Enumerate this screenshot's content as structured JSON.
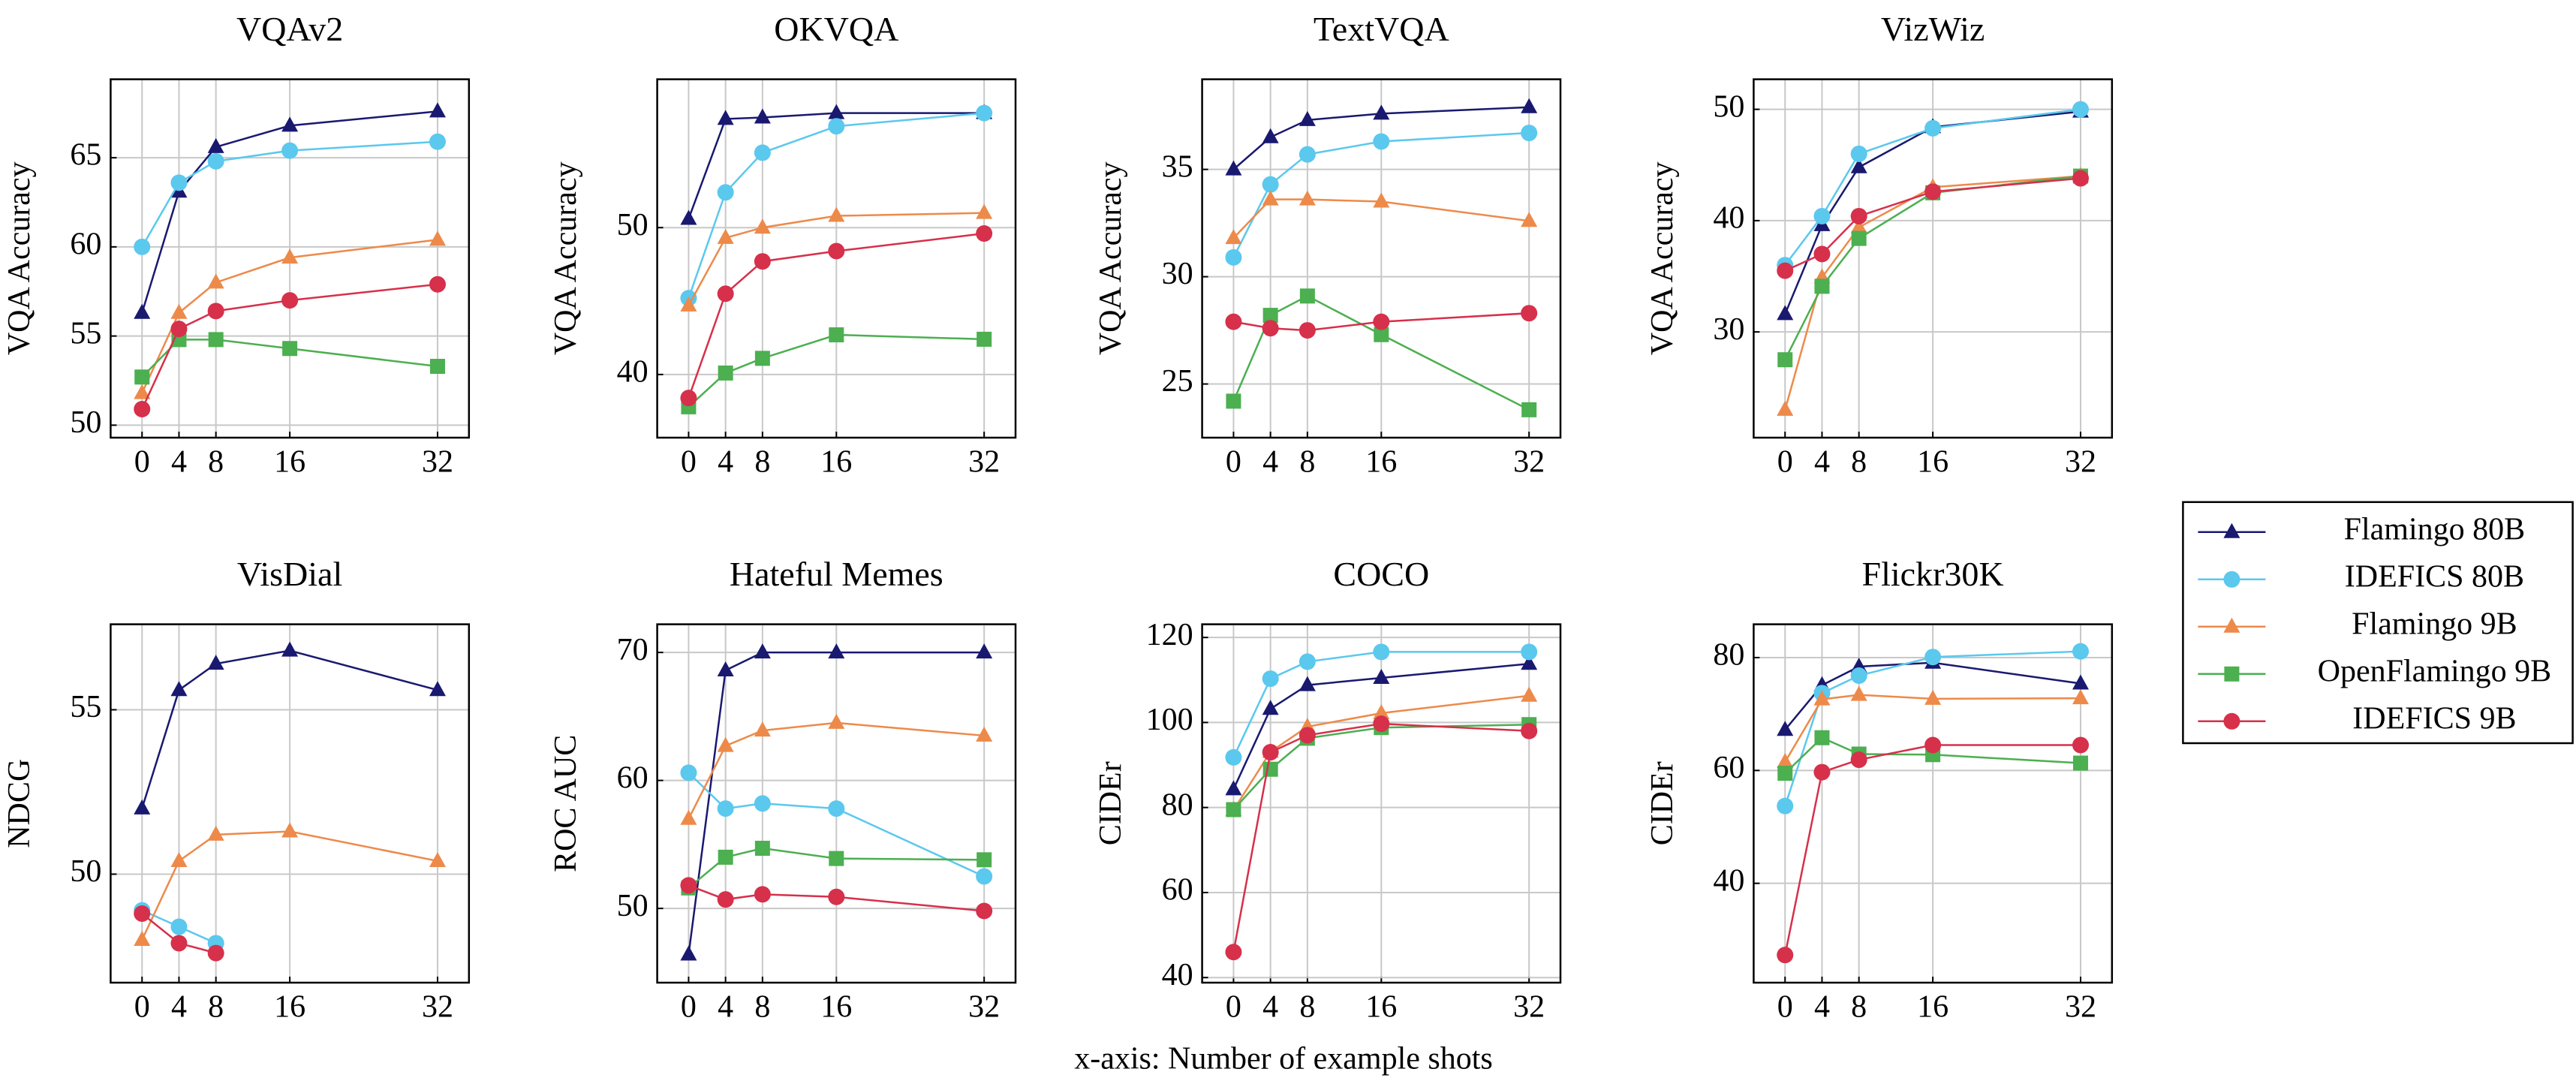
{
  "chart_data": [
    {
      "type": "line",
      "title": "VQAv2",
      "ylabel": "VQA Accuracy",
      "x": [
        0,
        4,
        8,
        16,
        32
      ],
      "xlim": [
        -3.4,
        35.4
      ],
      "xticks": [
        0,
        4,
        8,
        16,
        32
      ],
      "ylim": [
        49.3,
        69.4
      ],
      "yticks": [
        50,
        55,
        60,
        65
      ],
      "grid": true,
      "series": [
        {
          "name": "Flamingo 80B",
          "color": "#191970",
          "marker": "triangle",
          "values": [
            56.3,
            63.1,
            65.6,
            66.8,
            67.6
          ]
        },
        {
          "name": "IDEFICS 80B",
          "color": "#5bc8ee",
          "marker": "circle",
          "values": [
            60.0,
            63.6,
            64.8,
            65.4,
            65.9
          ]
        },
        {
          "name": "Flamingo 9B",
          "color": "#ed8a4a",
          "marker": "triangle",
          "values": [
            51.8,
            56.3,
            58.0,
            59.4,
            60.4
          ]
        },
        {
          "name": "OpenFlamingo 9B",
          "color": "#4caf50",
          "marker": "square",
          "values": [
            52.7,
            54.8,
            54.8,
            54.3,
            53.3
          ]
        },
        {
          "name": "IDEFICS 9B",
          "color": "#d6304b",
          "marker": "circle",
          "values": [
            50.9,
            55.4,
            56.4,
            57.0,
            57.9
          ]
        }
      ]
    },
    {
      "type": "line",
      "title": "OKVQA",
      "ylabel": "VQA Accuracy",
      "x": [
        0,
        4,
        8,
        16,
        32
      ],
      "xlim": [
        -3.4,
        35.4
      ],
      "xticks": [
        0,
        4,
        8,
        16,
        32
      ],
      "ylim": [
        35.7,
        60.1
      ],
      "yticks": [
        40,
        50
      ],
      "grid": true,
      "series": [
        {
          "name": "Flamingo 80B",
          "color": "#191970",
          "marker": "triangle",
          "values": [
            50.6,
            57.4,
            57.5,
            57.8,
            57.8
          ]
        },
        {
          "name": "IDEFICS 80B",
          "color": "#5bc8ee",
          "marker": "circle",
          "values": [
            45.2,
            52.4,
            55.1,
            56.9,
            57.8
          ]
        },
        {
          "name": "Flamingo 9B",
          "color": "#ed8a4a",
          "marker": "triangle",
          "values": [
            44.7,
            49.3,
            50.0,
            50.8,
            51.0
          ]
        },
        {
          "name": "OpenFlamingo 9B",
          "color": "#4caf50",
          "marker": "square",
          "values": [
            37.8,
            40.1,
            41.1,
            42.7,
            42.4
          ]
        },
        {
          "name": "IDEFICS 9B",
          "color": "#d6304b",
          "marker": "circle",
          "values": [
            38.4,
            45.5,
            47.7,
            48.4,
            49.6
          ]
        }
      ]
    },
    {
      "type": "line",
      "title": "TextVQA",
      "ylabel": "VQA Accuracy",
      "x": [
        0,
        4,
        8,
        16,
        32
      ],
      "xlim": [
        -3.4,
        35.4
      ],
      "xticks": [
        0,
        4,
        8,
        16,
        32
      ],
      "ylim": [
        22.5,
        39.2
      ],
      "yticks": [
        25,
        30,
        35
      ],
      "grid": true,
      "series": [
        {
          "name": "Flamingo 80B",
          "color": "#191970",
          "marker": "triangle",
          "values": [
            35.0,
            36.5,
            37.3,
            37.6,
            37.9
          ]
        },
        {
          "name": "IDEFICS 80B",
          "color": "#5bc8ee",
          "marker": "circle",
          "values": [
            30.9,
            34.3,
            35.7,
            36.3,
            36.7
          ]
        },
        {
          "name": "Flamingo 9B",
          "color": "#ed8a4a",
          "marker": "triangle",
          "values": [
            31.8,
            33.6,
            33.6,
            33.5,
            32.6
          ]
        },
        {
          "name": "OpenFlamingo 9B",
          "color": "#4caf50",
          "marker": "square",
          "values": [
            24.2,
            28.2,
            29.1,
            27.3,
            23.8
          ]
        },
        {
          "name": "IDEFICS 9B",
          "color": "#d6304b",
          "marker": "circle",
          "values": [
            27.9,
            27.6,
            27.5,
            27.9,
            28.3
          ]
        }
      ]
    },
    {
      "type": "line",
      "title": "VizWiz",
      "ylabel": "VQA Accuracy",
      "x": [
        0,
        4,
        8,
        16,
        32
      ],
      "xlim": [
        -3.4,
        35.4
      ],
      "xticks": [
        0,
        4,
        8,
        16,
        32
      ],
      "ylim": [
        20.5,
        52.7
      ],
      "yticks": [
        30,
        40,
        50
      ],
      "grid": true,
      "series": [
        {
          "name": "Flamingo 80B",
          "color": "#191970",
          "marker": "triangle",
          "values": [
            31.6,
            39.6,
            44.8,
            48.4,
            49.8
          ]
        },
        {
          "name": "IDEFICS 80B",
          "color": "#5bc8ee",
          "marker": "circle",
          "values": [
            36.0,
            40.4,
            46.0,
            48.3,
            50.0
          ]
        },
        {
          "name": "Flamingo 9B",
          "color": "#ed8a4a",
          "marker": "triangle",
          "values": [
            23.0,
            34.9,
            39.4,
            43.0,
            44.0
          ]
        },
        {
          "name": "OpenFlamingo 9B",
          "color": "#4caf50",
          "marker": "square",
          "values": [
            27.5,
            34.1,
            38.4,
            42.5,
            44.0
          ]
        },
        {
          "name": "IDEFICS 9B",
          "color": "#d6304b",
          "marker": "circle",
          "values": [
            35.5,
            37.0,
            40.4,
            42.6,
            43.8
          ]
        }
      ]
    },
    {
      "type": "line",
      "title": "VisDial",
      "ylabel": "NDCG",
      "x": [
        0,
        4,
        8,
        16,
        32
      ],
      "xlim": [
        -3.4,
        35.4
      ],
      "xticks": [
        0,
        4,
        8,
        16,
        32
      ],
      "ylim": [
        46.7,
        57.6
      ],
      "yticks": [
        50,
        55
      ],
      "grid": true,
      "series": [
        {
          "name": "Flamingo 80B",
          "color": "#191970",
          "marker": "triangle",
          "values": [
            52.0,
            55.6,
            56.4,
            56.8,
            55.6
          ]
        },
        {
          "name": "IDEFICS 80B",
          "color": "#5bc8ee",
          "marker": "circle",
          "values": [
            48.9,
            48.4,
            47.9,
            null,
            null
          ]
        },
        {
          "name": "Flamingo 9B",
          "color": "#ed8a4a",
          "marker": "triangle",
          "values": [
            48.0,
            50.4,
            51.2,
            51.3,
            50.4
          ]
        },
        {
          "name": "IDEFICS 9B",
          "color": "#d6304b",
          "marker": "circle",
          "values": [
            48.8,
            47.9,
            47.6,
            null,
            null
          ]
        }
      ]
    },
    {
      "type": "line",
      "title": "Hateful Memes",
      "ylabel": "ROC AUC",
      "x": [
        0,
        4,
        8,
        16,
        32
      ],
      "xlim": [
        -3.4,
        35.4
      ],
      "xticks": [
        0,
        4,
        8,
        16,
        32
      ],
      "ylim": [
        44.2,
        72.2
      ],
      "yticks": [
        50,
        60,
        70
      ],
      "grid": true,
      "series": [
        {
          "name": "Flamingo 80B",
          "color": "#191970",
          "marker": "triangle",
          "values": [
            46.4,
            68.6,
            70.0,
            70.0,
            70.0
          ]
        },
        {
          "name": "IDEFICS 80B",
          "color": "#5bc8ee",
          "marker": "circle",
          "values": [
            60.6,
            57.8,
            58.2,
            57.8,
            52.5
          ]
        },
        {
          "name": "Flamingo 9B",
          "color": "#ed8a4a",
          "marker": "triangle",
          "values": [
            57.0,
            62.7,
            63.9,
            64.5,
            63.5
          ]
        },
        {
          "name": "OpenFlamingo 9B",
          "color": "#4caf50",
          "marker": "square",
          "values": [
            51.6,
            54.0,
            54.7,
            53.9,
            53.8
          ]
        },
        {
          "name": "IDEFICS 9B",
          "color": "#d6304b",
          "marker": "circle",
          "values": [
            51.8,
            50.7,
            51.1,
            50.9,
            49.8
          ]
        }
      ]
    },
    {
      "type": "line",
      "title": "COCO",
      "ylabel": "CIDEr",
      "x": [
        0,
        4,
        8,
        16,
        32
      ],
      "xlim": [
        -3.4,
        35.4
      ],
      "xticks": [
        0,
        4,
        8,
        16,
        32
      ],
      "ylim": [
        38.8,
        123.1
      ],
      "yticks": [
        40,
        60,
        80,
        100,
        120
      ],
      "grid": true,
      "series": [
        {
          "name": "Flamingo 80B",
          "color": "#191970",
          "marker": "triangle",
          "values": [
            84.3,
            103.2,
            108.8,
            110.5,
            113.8
          ]
        },
        {
          "name": "IDEFICS 80B",
          "color": "#5bc8ee",
          "marker": "circle",
          "values": [
            91.8,
            110.3,
            114.3,
            116.6,
            116.6
          ]
        },
        {
          "name": "Flamingo 9B",
          "color": "#ed8a4a",
          "marker": "triangle",
          "values": [
            79.4,
            93.1,
            99.0,
            102.2,
            106.3
          ]
        },
        {
          "name": "OpenFlamingo 9B",
          "color": "#4caf50",
          "marker": "square",
          "values": [
            79.5,
            89.0,
            96.3,
            98.8,
            99.5
          ]
        },
        {
          "name": "IDEFICS 9B",
          "color": "#d6304b",
          "marker": "circle",
          "values": [
            46.0,
            93.0,
            97.0,
            99.7,
            98.0
          ]
        }
      ]
    },
    {
      "type": "line",
      "title": "Flickr30K",
      "ylabel": "CIDEr",
      "x": [
        0,
        4,
        8,
        16,
        32
      ],
      "xlim": [
        -3.4,
        35.4
      ],
      "xticks": [
        0,
        4,
        8,
        16,
        32
      ],
      "ylim": [
        22.4,
        85.9
      ],
      "yticks": [
        40,
        60,
        80
      ],
      "grid": true,
      "series": [
        {
          "name": "Flamingo 80B",
          "color": "#191970",
          "marker": "triangle",
          "values": [
            67.2,
            75.1,
            78.4,
            79.1,
            75.4
          ]
        },
        {
          "name": "IDEFICS 80B",
          "color": "#5bc8ee",
          "marker": "circle",
          "values": [
            53.7,
            73.7,
            76.8,
            80.1,
            81.1
          ]
        },
        {
          "name": "Flamingo 9B",
          "color": "#ed8a4a",
          "marker": "triangle",
          "values": [
            61.5,
            72.6,
            73.4,
            72.7,
            72.8
          ]
        },
        {
          "name": "OpenFlamingo 9B",
          "color": "#4caf50",
          "marker": "square",
          "values": [
            59.5,
            65.8,
            62.9,
            62.8,
            61.3
          ]
        },
        {
          "name": "IDEFICS 9B",
          "color": "#d6304b",
          "marker": "circle",
          "values": [
            27.3,
            59.7,
            61.9,
            64.5,
            64.5
          ]
        }
      ]
    }
  ],
  "x_axis_note": "x-axis: Number of example shots"
}
